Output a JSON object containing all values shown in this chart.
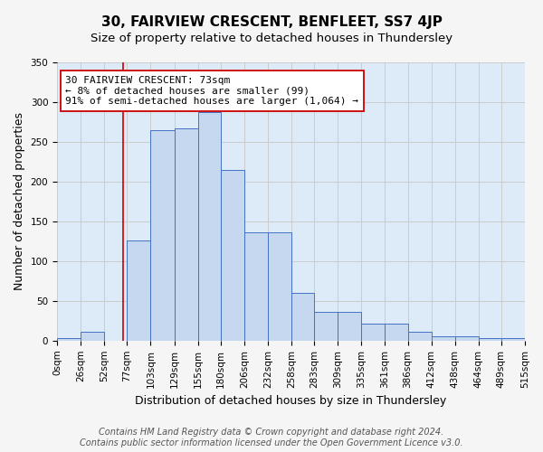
{
  "title": "30, FAIRVIEW CRESCENT, BENFLEET, SS7 4JP",
  "subtitle": "Size of property relative to detached houses in Thundersley",
  "xlabel": "Distribution of detached houses by size in Thundersley",
  "ylabel": "Number of detached properties",
  "bar_edges": [
    0,
    26,
    52,
    77,
    103,
    129,
    155,
    180,
    206,
    232,
    258,
    283,
    309,
    335,
    361,
    386,
    412,
    438,
    464,
    489,
    515
  ],
  "bar_heights": [
    3,
    11,
    0,
    126,
    265,
    267,
    288,
    215,
    136,
    136,
    60,
    36,
    36,
    21,
    21,
    11,
    5,
    5,
    3,
    3
  ],
  "tick_labels": [
    "0sqm",
    "26sqm",
    "52sqm",
    "77sqm",
    "103sqm",
    "129sqm",
    "155sqm",
    "180sqm",
    "206sqm",
    "232sqm",
    "258sqm",
    "283sqm",
    "309sqm",
    "335sqm",
    "361sqm",
    "386sqm",
    "412sqm",
    "438sqm",
    "464sqm",
    "489sqm",
    "515sqm"
  ],
  "bar_color": "#c5d8f0",
  "bar_edgecolor": "#4472c4",
  "vline_x": 73,
  "vline_color": "#cc0000",
  "annotation_line1": "30 FAIRVIEW CRESCENT: 73sqm",
  "annotation_line2": "← 8% of detached houses are smaller (99)",
  "annotation_line3": "91% of semi-detached houses are larger (1,064) →",
  "annotation_box_edgecolor": "#cc0000",
  "annotation_box_facecolor": "#ffffff",
  "ylim": [
    0,
    350
  ],
  "yticks": [
    0,
    50,
    100,
    150,
    200,
    250,
    300,
    350
  ],
  "grid_color": "#cccccc",
  "plot_bg_color": "#ddeaf7",
  "fig_bg_color": "#f5f5f5",
  "footer_line1": "Contains HM Land Registry data © Crown copyright and database right 2024.",
  "footer_line2": "Contains public sector information licensed under the Open Government Licence v3.0.",
  "title_fontsize": 11,
  "subtitle_fontsize": 9.5,
  "xlabel_fontsize": 9,
  "ylabel_fontsize": 9,
  "tick_fontsize": 7.5,
  "annotation_fontsize": 8,
  "footer_fontsize": 7
}
